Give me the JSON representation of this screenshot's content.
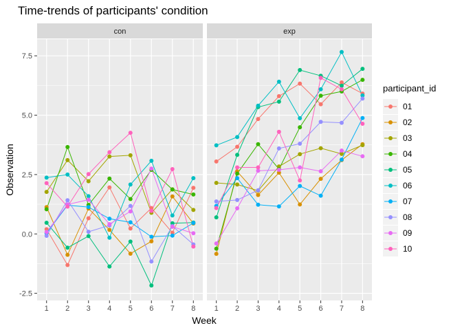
{
  "chart_data": {
    "type": "line",
    "title": "Time-trends of participants' condition",
    "xlabel": "Week",
    "ylabel": "Observation",
    "x": [
      1,
      2,
      3,
      4,
      5,
      6,
      7,
      8
    ],
    "x_tick_labels": [
      "1",
      "2",
      "3",
      "4",
      "5",
      "6",
      "7",
      "8"
    ],
    "ylim": [
      -2.8,
      8.2
    ],
    "y_ticks": [
      -2.5,
      0,
      2.5,
      5,
      7.5
    ],
    "y_tick_labels": [
      "-2.5",
      "0.0",
      "2.5",
      "5.0",
      "7.5"
    ],
    "grid": true,
    "legend": {
      "title": "participant_id",
      "position": "right"
    },
    "participants": [
      "01",
      "02",
      "03",
      "04",
      "05",
      "06",
      "07",
      "08",
      "09",
      "10"
    ],
    "colors": [
      "#F8766D",
      "#D89000",
      "#A3A500",
      "#39B600",
      "#00BF7D",
      "#00BFC4",
      "#00B0F6",
      "#9590FF",
      "#E76BF3",
      "#FF62BC"
    ],
    "panels": [
      {
        "label": "con",
        "series": [
          {
            "name": "01",
            "values": [
              0.2,
              -1.31,
              0.66,
              1.96,
              0.23,
              1.09,
              0.05,
              1.94
            ]
          },
          {
            "name": "02",
            "values": [
              1.13,
              -0.88,
              1.07,
              0.17,
              -0.83,
              -0.31,
              1.58,
              0.44
            ]
          },
          {
            "name": "03",
            "values": [
              1.77,
              3.11,
              2.22,
              3.26,
              3.31,
              0.89,
              1.88,
              1.01
            ]
          },
          {
            "name": "04",
            "values": [
              1.04,
              3.66,
              1.22,
              2.33,
              1.47,
              2.7,
              1.87,
              1.66
            ]
          },
          {
            "name": "05",
            "values": [
              0.47,
              -0.58,
              -0.09,
              -1.37,
              -0.32,
              -2.17,
              0.45,
              0.48
            ]
          },
          {
            "name": "06",
            "values": [
              2.37,
              2.5,
              1.59,
              -0.16,
              2.08,
              3.08,
              0.78,
              2.35
            ]
          },
          {
            "name": "07",
            "values": [
              0.03,
              1.21,
              1.13,
              0.64,
              0.49,
              -0.12,
              -0.07,
              0.46
            ]
          },
          {
            "name": "08",
            "values": [
              -0.08,
              1.42,
              0.09,
              0.36,
              1.18,
              -1.16,
              0.33,
              -0.44
            ]
          },
          {
            "name": "09",
            "values": [
              0.08,
              1.24,
              1.44,
              0.41,
              0.95,
              2.75,
              0.3,
              0.03
            ]
          },
          {
            "name": "10",
            "values": [
              2.14,
              1.15,
              2.52,
              3.44,
              4.26,
              0.97,
              2.73,
              -0.53
            ]
          }
        ]
      },
      {
        "label": "exp",
        "series": [
          {
            "name": "01",
            "values": [
              3.05,
              3.67,
              4.84,
              5.8,
              6.33,
              5.46,
              6.38,
              5.91
            ]
          },
          {
            "name": "02",
            "values": [
              -0.84,
              2.63,
              1.64,
              2.58,
              1.24,
              2.32,
              3.11,
              3.78
            ]
          },
          {
            "name": "03",
            "values": [
              2.15,
              2.08,
              1.82,
              2.84,
              3.36,
              3.61,
              3.37,
              3.74
            ]
          },
          {
            "name": "04",
            "values": [
              -0.62,
              2.54,
              3.78,
              2.73,
              4.49,
              5.82,
              6.0,
              6.49
            ]
          },
          {
            "name": "05",
            "values": [
              0.7,
              3.33,
              5.34,
              5.57,
              6.9,
              6.66,
              6.24,
              6.95
            ]
          },
          {
            "name": "06",
            "values": [
              3.73,
              4.08,
              5.4,
              6.41,
              4.87,
              6.09,
              7.66,
              5.83
            ]
          },
          {
            "name": "07",
            "values": [
              1.18,
              2.35,
              1.23,
              1.16,
              2.02,
              1.61,
              3.13,
              4.88
            ]
          },
          {
            "name": "08",
            "values": [
              1.37,
              1.43,
              1.84,
              3.6,
              3.8,
              4.72,
              4.68,
              5.7
            ]
          },
          {
            "name": "09",
            "values": [
              -0.4,
              1.08,
              2.66,
              2.7,
              2.8,
              2.64,
              3.51,
              3.27
            ]
          },
          {
            "name": "10",
            "values": [
              1.09,
              2.8,
              2.8,
              4.3,
              2.25,
              6.57,
              6.09,
              4.64
            ]
          }
        ]
      }
    ]
  }
}
